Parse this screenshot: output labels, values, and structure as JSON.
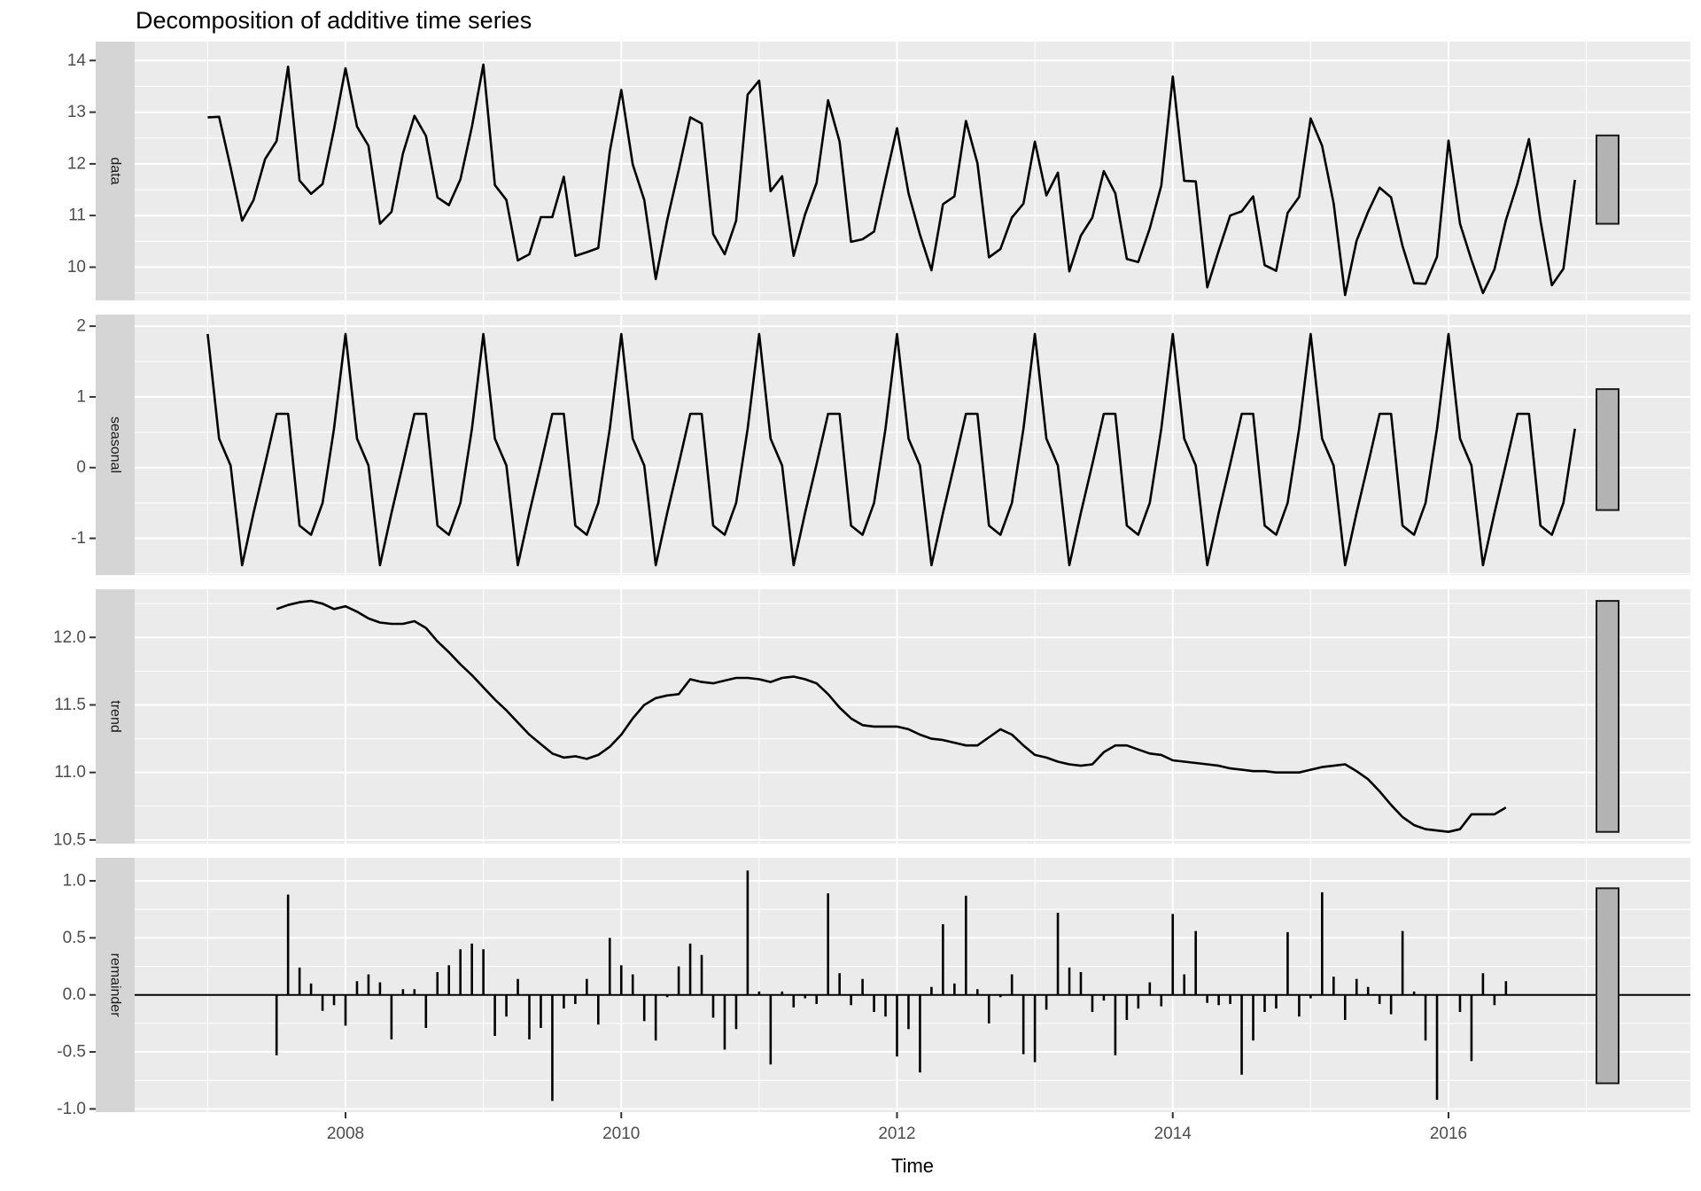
{
  "title": "Decomposition of additive time series",
  "x_axis": {
    "label": "Time",
    "ticks": [
      {
        "label": "2008",
        "t": 2008
      },
      {
        "label": "2010",
        "t": 2010
      },
      {
        "label": "2012",
        "t": 2012
      },
      {
        "label": "2014",
        "t": 2014
      },
      {
        "label": "2016",
        "t": 2016
      }
    ],
    "minor_t": [
      2007,
      2009,
      2011,
      2013,
      2015,
      2017
    ],
    "xlim": [
      2006.471,
      2017.755
    ]
  },
  "panels": [
    {
      "key": "data",
      "label": "data",
      "tick_labels": [
        "14",
        "13",
        "12",
        "11",
        "10"
      ],
      "tick_values": [
        14,
        13,
        12,
        11,
        10
      ],
      "minor": [
        13.5,
        12.5,
        11.5,
        10.5,
        9.5
      ],
      "ylim": [
        9.357,
        14.365
      ],
      "scale_bar": [
        10.84,
        12.55
      ],
      "zero_line": false
    },
    {
      "key": "seasonal",
      "label": "seasonal",
      "tick_labels": [
        "2",
        "1",
        "0",
        "-1"
      ],
      "tick_values": [
        2,
        1,
        0,
        -1
      ],
      "minor": [
        1.5,
        0.5,
        -0.5,
        -1.5
      ],
      "ylim": [
        -1.52,
        2.164
      ],
      "scale_bar": [
        -0.6,
        1.11
      ],
      "zero_line": false
    },
    {
      "key": "trend",
      "label": "trend",
      "tick_labels": [
        "12.0",
        "11.5",
        "11.0",
        "10.5"
      ],
      "tick_values": [
        12,
        11.5,
        11,
        10.5
      ],
      "minor": [
        12.25,
        11.75,
        11.25,
        10.75
      ],
      "ylim": [
        10.473,
        12.356
      ],
      "scale_bar": [
        10.56,
        12.27
      ],
      "zero_line": false
    },
    {
      "key": "remainder",
      "label": "remainder",
      "tick_labels": [
        "1.0",
        "0.5",
        "0.0",
        "-0.5",
        "-1.0"
      ],
      "tick_values": [
        1,
        0.5,
        0,
        -0.5,
        -1
      ],
      "minor": [
        0.75,
        0.25,
        -0.25,
        -0.75
      ],
      "ylim": [
        -1.028,
        1.202
      ],
      "scale_bar": [
        -0.775,
        0.935
      ],
      "zero_line": true
    }
  ],
  "colors": {
    "panel_bg": "#EBEBEB",
    "grid": "#FFFFFF",
    "strip_bg": "#D5D5D5",
    "strip_text": "#1A1A1A",
    "series_line": "#000000",
    "axis_text": "#4D4D4D",
    "tick_mark": "#333333",
    "scale_bar_fill": "#B3B3B3",
    "scale_bar_border": "#1A1A1A"
  },
  "chart_data": {
    "type": "line",
    "title": "Decomposition of additive time series",
    "xlabel": "Time",
    "time": {
      "start_year": 2007,
      "start_month": 1,
      "frequency": 12,
      "n": 120,
      "end_year": 2016,
      "end_month": 12
    },
    "panel_order": [
      "data",
      "seasonal",
      "trend",
      "remainder"
    ],
    "series": {
      "data": [
        12.9,
        12.91,
        11.93,
        10.9,
        11.3,
        12.09,
        12.44,
        13.88,
        11.68,
        11.42,
        11.61,
        12.67,
        13.85,
        12.72,
        12.35,
        10.84,
        11.07,
        12.2,
        12.93,
        12.54,
        11.35,
        11.2,
        11.7,
        12.72,
        13.92,
        11.59,
        11.3,
        10.13,
        10.25,
        10.97,
        10.97,
        11.75,
        10.22,
        10.29,
        10.37,
        12.24,
        13.43,
        11.99,
        11.3,
        9.77,
        10.91,
        11.88,
        12.9,
        12.78,
        10.64,
        10.25,
        10.9,
        13.34,
        13.61,
        11.47,
        11.76,
        10.22,
        11.02,
        11.63,
        13.23,
        12.43,
        10.49,
        10.54,
        10.69,
        11.7,
        12.69,
        11.43,
        10.63,
        9.94,
        11.22,
        11.37,
        12.83,
        12.01,
        10.19,
        10.35,
        10.96,
        11.23,
        12.43,
        11.39,
        11.83,
        9.92,
        10.61,
        10.96,
        11.86,
        11.43,
        10.16,
        10.1,
        10.75,
        11.58,
        13.69,
        11.67,
        11.66,
        9.61,
        10.32,
        11.0,
        11.08,
        11.37,
        10.04,
        9.93,
        11.05,
        11.36,
        12.88,
        12.35,
        11.24,
        9.46,
        10.51,
        11.07,
        11.54,
        11.35,
        10.41,
        9.69,
        9.68,
        10.2,
        12.45,
        10.84,
        10.14,
        9.5,
        9.96,
        10.91,
        11.62,
        12.48,
        10.9,
        9.65,
        9.97,
        11.69
      ],
      "seasonal_pattern": [
        1.89,
        0.41,
        0.03,
        -1.38,
        -0.64,
        0.05,
        0.76,
        0.76,
        -0.82,
        -0.95,
        -0.5,
        0.55
      ],
      "trend": [
        null,
        null,
        null,
        null,
        null,
        null,
        12.21,
        12.24,
        12.26,
        12.27,
        12.25,
        12.21,
        12.23,
        12.19,
        12.14,
        12.11,
        12.1,
        12.1,
        12.12,
        12.07,
        11.97,
        11.89,
        11.8,
        11.72,
        11.63,
        11.54,
        11.46,
        11.37,
        11.28,
        11.21,
        11.14,
        11.11,
        11.12,
        11.1,
        11.13,
        11.19,
        11.28,
        11.4,
        11.5,
        11.55,
        11.57,
        11.58,
        11.69,
        11.67,
        11.66,
        11.68,
        11.7,
        11.7,
        11.69,
        11.67,
        11.7,
        11.71,
        11.69,
        11.66,
        11.58,
        11.48,
        11.4,
        11.35,
        11.34,
        11.34,
        11.34,
        11.32,
        11.28,
        11.25,
        11.24,
        11.22,
        11.2,
        11.2,
        11.26,
        11.32,
        11.28,
        11.2,
        11.13,
        11.11,
        11.08,
        11.06,
        11.05,
        11.06,
        11.15,
        11.2,
        11.2,
        11.17,
        11.14,
        11.13,
        11.09,
        11.08,
        11.07,
        11.06,
        11.05,
        11.03,
        11.02,
        11.01,
        11.01,
        11.0,
        11.0,
        11.0,
        11.02,
        11.04,
        11.05,
        11.06,
        11.01,
        10.95,
        10.86,
        10.76,
        10.67,
        10.61,
        10.58,
        10.57,
        10.56,
        10.58,
        10.69,
        10.69,
        10.69,
        10.74,
        null,
        null,
        null,
        null,
        null,
        null
      ],
      "remainder": [
        null,
        null,
        null,
        null,
        null,
        null,
        -0.53,
        0.88,
        0.24,
        0.1,
        -0.14,
        -0.09,
        -0.27,
        0.12,
        0.18,
        0.11,
        -0.39,
        0.05,
        0.05,
        -0.29,
        0.2,
        0.26,
        0.4,
        0.45,
        0.4,
        -0.36,
        -0.19,
        0.14,
        -0.39,
        -0.29,
        -0.93,
        -0.12,
        -0.08,
        0.14,
        -0.26,
        0.5,
        0.26,
        0.18,
        -0.23,
        -0.4,
        -0.02,
        0.25,
        0.45,
        0.35,
        -0.2,
        -0.48,
        -0.3,
        1.09,
        0.03,
        -0.61,
        0.03,
        -0.11,
        -0.03,
        -0.08,
        0.89,
        0.19,
        -0.09,
        0.14,
        -0.15,
        -0.19,
        -0.54,
        -0.3,
        -0.68,
        0.07,
        0.62,
        0.1,
        0.87,
        0.05,
        -0.25,
        -0.02,
        0.18,
        -0.52,
        -0.59,
        -0.13,
        0.72,
        0.24,
        0.2,
        -0.15,
        -0.05,
        -0.53,
        -0.22,
        -0.12,
        0.11,
        -0.1,
        0.71,
        0.18,
        0.56,
        -0.07,
        -0.09,
        -0.08,
        -0.7,
        -0.4,
        -0.15,
        -0.12,
        0.55,
        -0.19,
        -0.03,
        0.9,
        0.16,
        -0.22,
        0.14,
        0.07,
        -0.08,
        -0.17,
        0.56,
        0.03,
        -0.4,
        -0.92,
        0.0,
        -0.15,
        -0.58,
        0.19,
        -0.09,
        0.12,
        null,
        null,
        null,
        null,
        null,
        null
      ]
    }
  }
}
